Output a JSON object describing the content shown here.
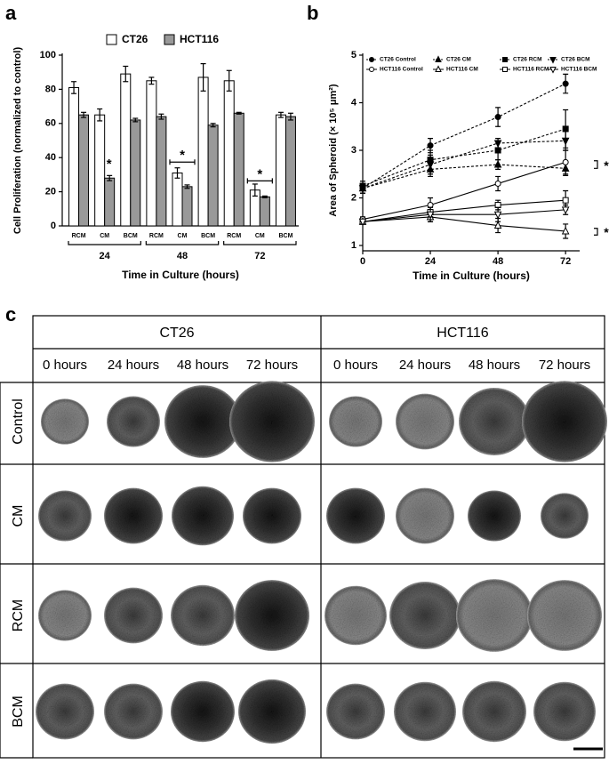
{
  "panel_labels": [
    "a",
    "b",
    "c"
  ],
  "chart_data": [
    {
      "type": "bar",
      "ylabel": "Cell Proliferation (normalized to control)",
      "xlabel": "Time in Culture (hours)",
      "categories": [
        "RCM",
        "CM",
        "BCM",
        "RCM",
        "CM",
        "BCM",
        "RCM",
        "CM",
        "BCM"
      ],
      "groups": [
        "24",
        "48",
        "72"
      ],
      "series": [
        {
          "name": "CT26",
          "color": "#ffffff",
          "values": [
            81,
            65,
            89,
            85,
            31,
            87,
            85,
            21,
            65
          ],
          "errors": [
            3.5,
            3.5,
            4.5,
            2,
            3,
            8,
            6,
            3.5,
            1.5
          ]
        },
        {
          "name": "HCT116",
          "color": "#999999",
          "values": [
            65,
            28,
            62,
            64,
            23,
            59,
            66,
            17,
            64
          ],
          "errors": [
            1.5,
            1.5,
            1,
            1.5,
            1,
            1,
            0.5,
            0.5,
            2
          ]
        }
      ],
      "ylim": [
        0,
        100
      ],
      "yticks": [
        0,
        20,
        40,
        60,
        80,
        100
      ],
      "annotations": [
        "*",
        "*",
        "*"
      ]
    },
    {
      "type": "line",
      "ylabel": "Area of Spheroid (× 10⁵ μm²)",
      "xlabel": "Time in Culture (hours)",
      "x": [
        0,
        24,
        48,
        72
      ],
      "xlim": [
        0,
        77
      ],
      "xticks": [
        0,
        24,
        48,
        72
      ],
      "ylim": [
        1,
        5
      ],
      "yticks": [
        1,
        2,
        3,
        4,
        5
      ],
      "series": [
        {
          "name": "CT26 Control",
          "color": "#000000",
          "marker": "circle",
          "filled": true,
          "dashed": true,
          "values": [
            2.2,
            3.1,
            3.7,
            4.4
          ],
          "errors": [
            0.1,
            0.15,
            0.2,
            0.2
          ]
        },
        {
          "name": "CT26 CM",
          "color": "#000000",
          "marker": "triangle",
          "filled": true,
          "dashed": true,
          "values": [
            2.2,
            2.6,
            2.7,
            2.62
          ],
          "errors": [
            0.1,
            0.15,
            0.1,
            0.15
          ]
        },
        {
          "name": "CT26 RCM",
          "color": "#000000",
          "marker": "square",
          "filled": true,
          "dashed": true,
          "values": [
            2.25,
            2.8,
            3.0,
            3.45
          ],
          "errors": [
            0.1,
            0.2,
            0.2,
            0.4
          ]
        },
        {
          "name": "CT26 BCM",
          "color": "#000000",
          "marker": "triangle-down",
          "filled": true,
          "dashed": true,
          "values": [
            2.2,
            2.7,
            3.15,
            3.2
          ],
          "errors": [
            0.1,
            0.2,
            0.1,
            0.2
          ]
        },
        {
          "name": "HCT116 Control",
          "color": "#000000",
          "marker": "circle",
          "filled": false,
          "dashed": false,
          "values": [
            1.55,
            1.85,
            2.3,
            2.75
          ],
          "errors": [
            0.05,
            0.15,
            0.15,
            0.25
          ]
        },
        {
          "name": "HCT116 CM",
          "color": "#000000",
          "marker": "triangle",
          "filled": false,
          "dashed": false,
          "values": [
            1.5,
            1.6,
            1.42,
            1.3
          ],
          "errors": [
            0.05,
            0.1,
            0.15,
            0.15
          ]
        },
        {
          "name": "HCT116 RCM",
          "color": "#000000",
          "marker": "square",
          "filled": false,
          "dashed": false,
          "values": [
            1.5,
            1.7,
            1.85,
            1.95
          ],
          "errors": [
            0.05,
            0.1,
            0.1,
            0.2
          ]
        },
        {
          "name": "HCT116 BCM",
          "color": "#000000",
          "marker": "triangle-down",
          "filled": false,
          "dashed": false,
          "values": [
            1.5,
            1.65,
            1.65,
            1.75
          ],
          "errors": [
            0.05,
            0.15,
            0.15,
            0.1
          ]
        }
      ],
      "annotations": [
        "*",
        "*"
      ]
    }
  ],
  "grid": {
    "groups": [
      "CT26",
      "HCT116"
    ],
    "times": [
      "0 hours",
      "24 hours",
      "48 hours",
      "72 hours"
    ],
    "rows": [
      "Control",
      "CM",
      "RCM",
      "BCM"
    ]
  }
}
